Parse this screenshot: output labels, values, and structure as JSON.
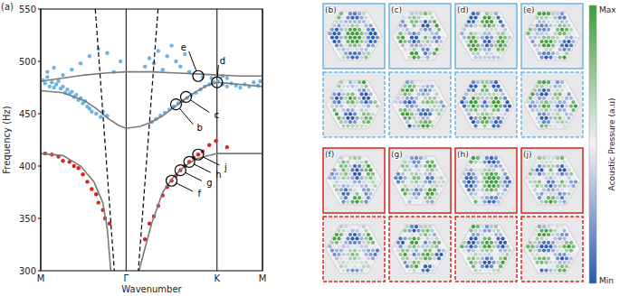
{
  "chart_data": {
    "type": "scatter",
    "panel_label": "(a)",
    "xlabel": "Wavenumber",
    "ylabel": "Frequency (Hz)",
    "xlim": [
      0,
      1
    ],
    "xticks": [
      {
        "value": 0,
        "label": "M"
      },
      {
        "value": 0.385,
        "label": "Γ"
      },
      {
        "value": 0.795,
        "label": "K"
      },
      {
        "value": 1,
        "label": "M"
      }
    ],
    "ylim": [
      300,
      550
    ],
    "yticks": [
      300,
      350,
      400,
      450,
      500,
      550
    ],
    "grid": "x",
    "series": [
      {
        "type": "scatter",
        "color": "#6cb4e4",
        "marker": "circle",
        "x": [
          0.01,
          0.02,
          0.03,
          0.04,
          0.05,
          0.06,
          0.07,
          0.08,
          0.09,
          0.1,
          0.11,
          0.12,
          0.13,
          0.14,
          0.15,
          0.16,
          0.17,
          0.18,
          0.19,
          0.2,
          0.21,
          0.22,
          0.23,
          0.25,
          0.27,
          0.28,
          0.3,
          0.03,
          0.06,
          0.1,
          0.14,
          0.18,
          0.22,
          0.26,
          0.3,
          0.33,
          0.36,
          0.47,
          0.49,
          0.51,
          0.53,
          0.55,
          0.57,
          0.59,
          0.61,
          0.63,
          0.65,
          0.67,
          0.5,
          0.52,
          0.54,
          0.56,
          0.58,
          0.6,
          0.62,
          0.64,
          0.66,
          0.68,
          0.7,
          0.72,
          0.74,
          0.76,
          0.78,
          0.8,
          0.82,
          0.84,
          0.86,
          0.88,
          0.9,
          0.92,
          0.94,
          0.96,
          0.98,
          0.99,
          0.73,
          0.77,
          0.82,
          0.84
        ],
        "values": [
          482,
          479,
          485,
          476,
          480,
          475,
          478,
          481,
          474,
          476,
          470,
          473,
          469,
          471,
          466,
          468,
          463,
          465,
          460,
          462,
          457,
          455,
          452,
          450,
          447,
          452,
          448,
          490,
          494,
          487,
          492,
          498,
          505,
          512,
          508,
          490,
          500,
          495,
          503,
          498,
          510,
          492,
          505,
          515,
          500,
          495,
          507,
          490,
          442,
          445,
          448,
          451,
          454,
          457,
          460,
          462,
          465,
          468,
          470,
          473,
          476,
          478,
          480,
          481,
          478,
          476,
          479,
          477,
          475,
          478,
          476,
          480,
          477,
          481,
          485,
          484,
          486,
          484
        ]
      },
      {
        "type": "scatter",
        "color": "#e0201b",
        "marker": "circle",
        "x": [
          0.02,
          0.05,
          0.08,
          0.1,
          0.13,
          0.15,
          0.17,
          0.19,
          0.21,
          0.23,
          0.25,
          0.26,
          0.28,
          0.29,
          0.31,
          0.47,
          0.49,
          0.51,
          0.53,
          0.55,
          0.57,
          0.59,
          0.61,
          0.63,
          0.65,
          0.67,
          0.69,
          0.71,
          0.73,
          0.76,
          0.79,
          0.84
        ],
        "values": [
          412,
          411,
          409,
          405,
          404,
          400,
          398,
          392,
          385,
          378,
          373,
          365,
          358,
          350,
          345,
          330,
          345,
          352,
          362,
          372,
          380,
          386,
          391,
          396,
          400,
          404,
          408,
          411,
          414,
          420,
          424,
          418
        ]
      },
      {
        "type": "line",
        "color": "#7a7a7a",
        "line_style": "solid",
        "x": [
          0,
          0.1,
          0.2,
          0.3,
          0.385,
          0.5,
          0.6,
          0.7,
          0.795,
          0.9,
          1
        ],
        "values": [
          481,
          484,
          487,
          489,
          490,
          490,
          489,
          488,
          487,
          486,
          486
        ]
      },
      {
        "type": "line",
        "color": "#7a7a7a",
        "line_style": "solid",
        "x": [
          0,
          0.1,
          0.2,
          0.25,
          0.3,
          0.35,
          0.385,
          0.45,
          0.5,
          0.55,
          0.6,
          0.65,
          0.7,
          0.75,
          0.795,
          0.9,
          1
        ],
        "values": [
          472,
          470,
          462,
          455,
          446,
          439,
          436,
          438,
          442,
          448,
          456,
          464,
          471,
          477,
          480,
          478,
          476
        ]
      },
      {
        "type": "line",
        "color": "#7a7a7a",
        "line_style": "solid",
        "x": [
          0,
          0.1,
          0.18,
          0.24,
          0.28,
          0.3,
          0.316,
          0.38,
          0.443,
          0.5,
          0.55,
          0.6,
          0.65,
          0.7,
          0.795,
          0.9,
          1
        ],
        "values": [
          412,
          410,
          400,
          385,
          365,
          340,
          300,
          null,
          300,
          345,
          375,
          390,
          400,
          407,
          412,
          412,
          412
        ]
      },
      {
        "type": "line",
        "color": "#000000",
        "line_style": "dashed",
        "x": [
          0.246,
          0.332
        ],
        "values": [
          550,
          300
        ]
      },
      {
        "type": "line",
        "color": "#000000",
        "line_style": "dashed",
        "x": [
          0.529,
          0.44
        ],
        "values": [
          550,
          300
        ]
      }
    ],
    "annotations": [
      {
        "label": "b",
        "x": 0.61,
        "y": 459
      },
      {
        "label": "c",
        "x": 0.655,
        "y": 466
      },
      {
        "label": "d",
        "x": 0.795,
        "y": 480
      },
      {
        "label": "e",
        "x": 0.71,
        "y": 486
      },
      {
        "label": "f",
        "x": 0.59,
        "y": 386
      },
      {
        "label": "g",
        "x": 0.63,
        "y": 396
      },
      {
        "label": "h",
        "x": 0.67,
        "y": 404
      },
      {
        "label": "j",
        "x": 0.71,
        "y": 411
      }
    ]
  },
  "panels": [
    {
      "label": "(b)",
      "color": "#6cb4e4"
    },
    {
      "label": "(c)",
      "color": "#6cb4e4"
    },
    {
      "label": "(d)",
      "color": "#6cb4e4"
    },
    {
      "label": "(e)",
      "color": "#6cb4e4"
    },
    {
      "label": "(f)",
      "color": "#e0201b"
    },
    {
      "label": "(g)",
      "color": "#e0201b"
    },
    {
      "label": "(h)",
      "color": "#e0201b"
    },
    {
      "label": "(j)",
      "color": "#e0201b"
    }
  ],
  "colorbar": {
    "label": "Acoustic Pressure (a.u)",
    "max_label": "Max",
    "min_label": "Min",
    "colors": [
      "#3e9e3a",
      "#f2f0f5",
      "#2a5cae"
    ]
  }
}
